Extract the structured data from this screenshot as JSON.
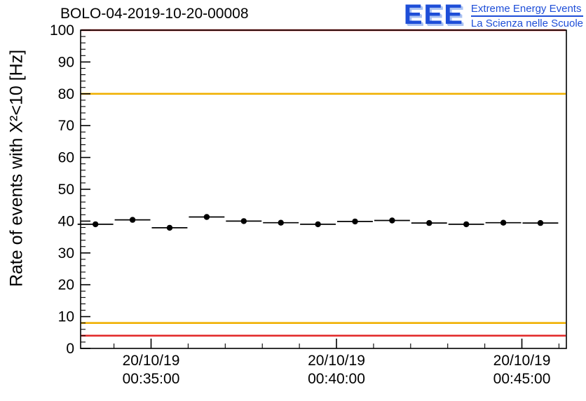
{
  "header": {
    "logo": {
      "text": "EEE",
      "line1": "Extreme Energy Events",
      "line2": "La Scienza nelle Scuole",
      "color": "#1e4ed8",
      "shadow_color": "#aac2f2"
    }
  },
  "chart_data": {
    "type": "scatter",
    "title": "BOLO-04-2019-10-20-00008",
    "xlabel": "",
    "ylabel": "Rate of events with X²<10 [Hz]",
    "ylim": [
      0,
      100
    ],
    "xlim_minutes": [
      33.1,
      46.2
    ],
    "grid": false,
    "legend": "none",
    "y_major_ticks": [
      0,
      10,
      20,
      30,
      40,
      50,
      60,
      70,
      80,
      90,
      100
    ],
    "y_minor_step": 2,
    "x_minor_step_minutes": 1,
    "x_major_ticks": [
      {
        "minute": 35,
        "label_line1": "20/10/19",
        "label_line2": "00:35:00"
      },
      {
        "minute": 40,
        "label_line1": "20/10/19",
        "label_line2": "00:40:00"
      },
      {
        "minute": 45,
        "label_line1": "20/10/19",
        "label_line2": "00:45:00"
      }
    ],
    "thresholds": [
      {
        "name": "alarm-high",
        "value": 100,
        "color": "#e22b2b"
      },
      {
        "name": "warning-high",
        "value": 80,
        "color": "#f0b000"
      },
      {
        "name": "warning-low",
        "value": 8,
        "color": "#f0b000"
      },
      {
        "name": "alarm-low",
        "value": 4,
        "color": "#e22b2b"
      }
    ],
    "series": [
      {
        "name": "event-rate",
        "marker": "filled-circle",
        "color": "#000000",
        "bin_width_minutes": 1,
        "y_error": 0.7,
        "points": [
          {
            "x_minute": 33.5,
            "y": 39.0
          },
          {
            "x_minute": 34.5,
            "y": 40.4
          },
          {
            "x_minute": 35.5,
            "y": 37.9
          },
          {
            "x_minute": 36.5,
            "y": 41.3
          },
          {
            "x_minute": 37.5,
            "y": 40.0
          },
          {
            "x_minute": 38.5,
            "y": 39.5
          },
          {
            "x_minute": 39.5,
            "y": 39.0
          },
          {
            "x_minute": 40.5,
            "y": 39.9
          },
          {
            "x_minute": 41.5,
            "y": 40.2
          },
          {
            "x_minute": 42.5,
            "y": 39.4
          },
          {
            "x_minute": 43.5,
            "y": 39.0
          },
          {
            "x_minute": 44.5,
            "y": 39.5
          },
          {
            "x_minute": 45.5,
            "y": 39.4
          }
        ]
      }
    ]
  }
}
